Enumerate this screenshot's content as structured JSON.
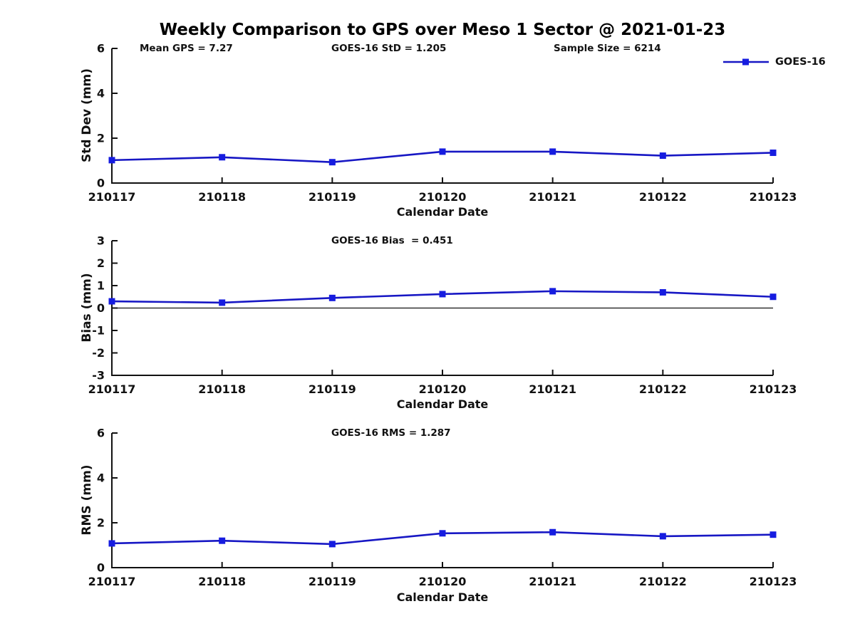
{
  "title": "Weekly Comparison to GPS over Meso 1 Sector @ 2021-01-23",
  "legend": {
    "label": "GOES-16"
  },
  "colors": {
    "line": "#1717c4",
    "marker": "#161ce0",
    "axis": "#111111",
    "zero_line": "#111111",
    "text": "#111111"
  },
  "chart_data": [
    {
      "id": "stddev",
      "type": "line",
      "series_name": "GOES-16",
      "annotations": [
        "Mean GPS = 7.27",
        "GOES-16 StD = 1.205",
        "Sample Size = 6214"
      ],
      "ylabel": "Std Dev (mm)",
      "xlabel": "Calendar Date",
      "ylim": [
        0,
        6
      ],
      "yticks": [
        0,
        2,
        4,
        6
      ],
      "grid": false,
      "legend_position": "top-right",
      "categories": [
        "210117",
        "210118",
        "210119",
        "210120",
        "210121",
        "210122",
        "210123"
      ],
      "values": [
        1.02,
        1.15,
        0.93,
        1.4,
        1.4,
        1.22,
        1.35
      ]
    },
    {
      "id": "bias",
      "type": "line",
      "series_name": "GOES-16",
      "annotations": [
        "GOES-16 Bias  = 0.451"
      ],
      "ylabel": "Bias (mm)",
      "xlabel": "Calendar Date",
      "ylim": [
        -3,
        3
      ],
      "yticks": [
        -3,
        -2,
        -1,
        0,
        1,
        2,
        3
      ],
      "zero_line": true,
      "grid": false,
      "categories": [
        "210117",
        "210118",
        "210119",
        "210120",
        "210121",
        "210122",
        "210123"
      ],
      "values": [
        0.3,
        0.24,
        0.45,
        0.62,
        0.75,
        0.7,
        0.5
      ]
    },
    {
      "id": "rms",
      "type": "line",
      "series_name": "GOES-16",
      "annotations": [
        "GOES-16 RMS = 1.287"
      ],
      "ylabel": "RMS (mm)",
      "xlabel": "Calendar Date",
      "ylim": [
        0,
        6
      ],
      "yticks": [
        0,
        2,
        4,
        6
      ],
      "grid": false,
      "categories": [
        "210117",
        "210118",
        "210119",
        "210120",
        "210121",
        "210122",
        "210123"
      ],
      "values": [
        1.08,
        1.2,
        1.05,
        1.53,
        1.58,
        1.4,
        1.47
      ]
    }
  ]
}
